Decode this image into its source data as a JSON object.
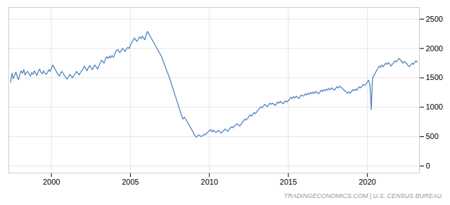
{
  "chart_data": {
    "type": "line",
    "color": "#4f86c0",
    "grid": true,
    "annotations": [
      "TRADINGECONOMICS.COM | U.S. CENSUS BUREAU"
    ],
    "xlim": [
      1997.3,
      2023.3
    ],
    "xticks": [
      2000,
      2005,
      2010,
      2015,
      2020
    ],
    "ylim": [
      -120,
      2700
    ],
    "yticks": [
      0,
      500,
      1000,
      1500,
      2000,
      2500
    ],
    "x": [
      1997.42,
      1997.5,
      1997.58,
      1997.67,
      1997.75,
      1997.83,
      1997.92,
      1998.0,
      1998.08,
      1998.17,
      1998.25,
      1998.33,
      1998.42,
      1998.5,
      1998.58,
      1998.67,
      1998.75,
      1998.83,
      1998.92,
      1999.0,
      1999.08,
      1999.17,
      1999.25,
      1999.33,
      1999.42,
      1999.5,
      1999.58,
      1999.67,
      1999.75,
      1999.83,
      1999.92,
      2000.0,
      2000.08,
      2000.17,
      2000.25,
      2000.33,
      2000.42,
      2000.5,
      2000.58,
      2000.67,
      2000.75,
      2000.83,
      2000.92,
      2001.0,
      2001.08,
      2001.17,
      2001.25,
      2001.33,
      2001.42,
      2001.5,
      2001.58,
      2001.67,
      2001.75,
      2001.83,
      2001.92,
      2002.0,
      2002.08,
      2002.17,
      2002.25,
      2002.33,
      2002.42,
      2002.5,
      2002.58,
      2002.67,
      2002.75,
      2002.83,
      2002.92,
      2003.0,
      2003.08,
      2003.17,
      2003.25,
      2003.33,
      2003.42,
      2003.5,
      2003.58,
      2003.67,
      2003.75,
      2003.83,
      2003.92,
      2004.0,
      2004.08,
      2004.17,
      2004.25,
      2004.33,
      2004.42,
      2004.5,
      2004.58,
      2004.67,
      2004.75,
      2004.83,
      2004.92,
      2005.0,
      2005.08,
      2005.17,
      2005.25,
      2005.33,
      2005.42,
      2005.5,
      2005.58,
      2005.67,
      2005.75,
      2005.83,
      2005.92,
      2006.0,
      2006.08,
      2006.17,
      2006.25,
      2006.33,
      2006.42,
      2006.5,
      2006.58,
      2006.67,
      2006.75,
      2006.83,
      2006.92,
      2007.0,
      2007.08,
      2007.17,
      2007.25,
      2007.33,
      2007.42,
      2007.5,
      2007.58,
      2007.67,
      2007.75,
      2007.83,
      2007.92,
      2008.0,
      2008.08,
      2008.17,
      2008.25,
      2008.33,
      2008.42,
      2008.5,
      2008.58,
      2008.67,
      2008.75,
      2008.83,
      2008.92,
      2009.0,
      2009.08,
      2009.17,
      2009.25,
      2009.33,
      2009.42,
      2009.5,
      2009.58,
      2009.67,
      2009.75,
      2009.83,
      2009.92,
      2010.0,
      2010.08,
      2010.17,
      2010.25,
      2010.33,
      2010.42,
      2010.5,
      2010.58,
      2010.67,
      2010.75,
      2010.83,
      2010.92,
      2011.0,
      2011.08,
      2011.17,
      2011.25,
      2011.33,
      2011.42,
      2011.5,
      2011.58,
      2011.67,
      2011.75,
      2011.83,
      2011.92,
      2012.0,
      2012.08,
      2012.17,
      2012.25,
      2012.33,
      2012.42,
      2012.5,
      2012.58,
      2012.67,
      2012.75,
      2012.83,
      2012.92,
      2013.0,
      2013.08,
      2013.17,
      2013.25,
      2013.33,
      2013.42,
      2013.5,
      2013.58,
      2013.67,
      2013.75,
      2013.83,
      2013.92,
      2014.0,
      2014.08,
      2014.17,
      2014.25,
      2014.33,
      2014.42,
      2014.5,
      2014.58,
      2014.67,
      2014.75,
      2014.83,
      2014.92,
      2015.0,
      2015.08,
      2015.17,
      2015.25,
      2015.33,
      2015.42,
      2015.5,
      2015.58,
      2015.67,
      2015.75,
      2015.83,
      2015.92,
      2016.0,
      2016.08,
      2016.17,
      2016.25,
      2016.33,
      2016.42,
      2016.5,
      2016.58,
      2016.67,
      2016.75,
      2016.83,
      2016.92,
      2017.0,
      2017.08,
      2017.17,
      2017.25,
      2017.33,
      2017.42,
      2017.5,
      2017.58,
      2017.67,
      2017.75,
      2017.83,
      2017.92,
      2018.0,
      2018.08,
      2018.17,
      2018.25,
      2018.33,
      2018.42,
      2018.5,
      2018.58,
      2018.67,
      2018.75,
      2018.83,
      2018.92,
      2019.0,
      2019.08,
      2019.17,
      2019.25,
      2019.33,
      2019.42,
      2019.5,
      2019.58,
      2019.67,
      2019.75,
      2019.83,
      2019.92,
      2020.0,
      2020.08,
      2020.17,
      2020.25,
      2020.33,
      2020.42,
      2020.5,
      2020.58,
      2020.67,
      2020.75,
      2020.83,
      2020.92,
      2021.0,
      2021.08,
      2021.17,
      2021.25,
      2021.33,
      2021.42,
      2021.5,
      2021.58,
      2021.67,
      2021.75,
      2021.83,
      2021.92,
      2022.0,
      2022.08,
      2022.17,
      2022.25,
      2022.33,
      2022.42,
      2022.5,
      2022.58,
      2022.67,
      2022.75,
      2022.83,
      2022.92,
      2023.0,
      2023.08,
      2023.17
    ],
    "values": [
      1430,
      1580,
      1490,
      1540,
      1600,
      1520,
      1470,
      1560,
      1620,
      1580,
      1640,
      1550,
      1590,
      1610,
      1570,
      1530,
      1590,
      1560,
      1620,
      1580,
      1540,
      1610,
      1650,
      1600,
      1570,
      1620,
      1580,
      1560,
      1590,
      1640,
      1610,
      1660,
      1720,
      1680,
      1640,
      1600,
      1560,
      1530,
      1580,
      1610,
      1570,
      1540,
      1500,
      1480,
      1520,
      1560,
      1530,
      1500,
      1540,
      1570,
      1610,
      1580,
      1550,
      1590,
      1620,
      1650,
      1700,
      1660,
      1620,
      1670,
      1710,
      1680,
      1640,
      1680,
      1720,
      1690,
      1650,
      1700,
      1750,
      1800,
      1780,
      1750,
      1820,
      1860,
      1830,
      1870,
      1840,
      1880,
      1850,
      1900,
      1950,
      1980,
      1960,
      1930,
      1970,
      2000,
      1980,
      1950,
      1990,
      2020,
      2000,
      2060,
      2100,
      2140,
      2180,
      2150,
      2120,
      2160,
      2200,
      2170,
      2210,
      2180,
      2150,
      2240,
      2290,
      2250,
      2210,
      2170,
      2130,
      2090,
      2050,
      2010,
      1970,
      1930,
      1890,
      1840,
      1780,
      1720,
      1660,
      1600,
      1540,
      1480,
      1410,
      1340,
      1270,
      1200,
      1130,
      1060,
      990,
      920,
      850,
      800,
      830,
      800,
      760,
      720,
      680,
      640,
      600,
      560,
      520,
      490,
      510,
      530,
      510,
      500,
      520,
      540,
      530,
      560,
      580,
      600,
      620,
      580,
      610,
      590,
      570,
      590,
      610,
      580,
      560,
      580,
      610,
      630,
      610,
      590,
      620,
      650,
      670,
      650,
      680,
      700,
      720,
      700,
      680,
      710,
      740,
      770,
      800,
      780,
      810,
      840,
      870,
      850,
      880,
      910,
      890,
      920,
      950,
      980,
      1010,
      990,
      1020,
      1050,
      1030,
      1010,
      1040,
      1070,
      1050,
      1070,
      1050,
      1030,
      1060,
      1090,
      1070,
      1100,
      1080,
      1060,
      1090,
      1110,
      1090,
      1110,
      1140,
      1170,
      1150,
      1180,
      1160,
      1190,
      1170,
      1150,
      1180,
      1210,
      1190,
      1200,
      1230,
      1210,
      1240,
      1220,
      1250,
      1230,
      1260,
      1240,
      1270,
      1250,
      1230,
      1260,
      1290,
      1270,
      1300,
      1280,
      1310,
      1290,
      1320,
      1300,
      1330,
      1310,
      1290,
      1320,
      1350,
      1330,
      1360,
      1340,
      1320,
      1300,
      1280,
      1260,
      1240,
      1260,
      1240,
      1270,
      1300,
      1280,
      1310,
      1290,
      1320,
      1350,
      1330,
      1360,
      1390,
      1370,
      1400,
      1430,
      1460,
      1390,
      960,
      1500,
      1540,
      1580,
      1620,
      1660,
      1700,
      1680,
      1720,
      1690,
      1720,
      1750,
      1730,
      1760,
      1740,
      1700,
      1730,
      1760,
      1790,
      1770,
      1800,
      1830,
      1810,
      1780,
      1750,
      1780,
      1760,
      1740,
      1710,
      1690,
      1720,
      1750,
      1730,
      1760,
      1790,
      1770
    ]
  }
}
